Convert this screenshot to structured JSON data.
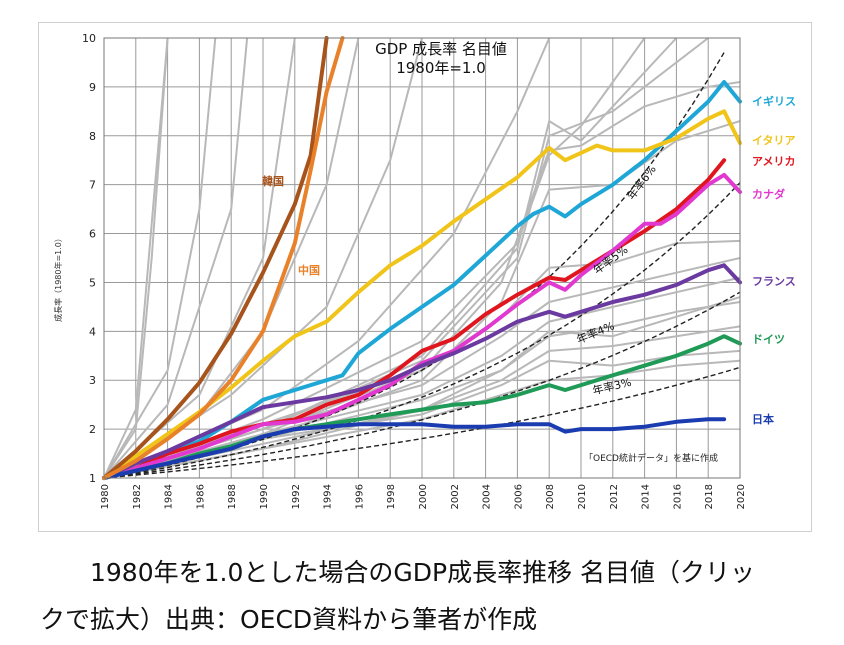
{
  "chart_data": {
    "type": "line",
    "title": "GDP 成長率 名目値",
    "subtitle": "1980年=1.0",
    "ylabel": "成長率（1980年=1.0）",
    "xlabel": "",
    "xlim": [
      1980,
      2020
    ],
    "ylim": [
      1,
      10
    ],
    "x_ticks": [
      "1980",
      "1982",
      "1984",
      "1986",
      "1988",
      "1990",
      "1992",
      "1994",
      "1996",
      "1998",
      "2000",
      "2002",
      "2004",
      "2006",
      "2008",
      "2010",
      "2012",
      "2014",
      "2016",
      "2018",
      "2020"
    ],
    "y_ticks": [
      "1",
      "2",
      "3",
      "4",
      "5",
      "6",
      "7",
      "8",
      "9",
      "10"
    ],
    "grid": true,
    "annotation": "「OECD統計データ」を基に作成",
    "series": [
      {
        "name": "イギリス",
        "color": "#1ea7d6",
        "x": [
          1980,
          1982,
          1984,
          1986,
          1988,
          1990,
          1992,
          1994,
          1995,
          1996,
          1998,
          2000,
          2002,
          2004,
          2006,
          2007,
          2008,
          2009,
          2010,
          2012,
          2014,
          2016,
          2018,
          2019,
          2020
        ],
        "y": [
          1,
          1.3,
          1.5,
          1.75,
          2.15,
          2.6,
          2.8,
          3.0,
          3.1,
          3.55,
          4.05,
          4.5,
          4.95,
          5.55,
          6.15,
          6.4,
          6.55,
          6.35,
          6.6,
          7.0,
          7.5,
          8.1,
          8.7,
          9.1,
          8.7
        ]
      },
      {
        "name": "イタリア",
        "color": "#f0c419",
        "x": [
          1980,
          1982,
          1984,
          1986,
          1988,
          1990,
          1992,
          1994,
          1996,
          1998,
          2000,
          2002,
          2004,
          2006,
          2008,
          2009,
          2010,
          2011,
          2012,
          2014,
          2016,
          2018,
          2019,
          2020
        ],
        "y": [
          1,
          1.45,
          1.9,
          2.35,
          2.85,
          3.4,
          3.9,
          4.2,
          4.8,
          5.35,
          5.75,
          6.25,
          6.7,
          7.15,
          7.75,
          7.5,
          7.65,
          7.8,
          7.7,
          7.7,
          7.95,
          8.35,
          8.5,
          7.85
        ]
      },
      {
        "name": "アメリカ",
        "color": "#e0161e",
        "x": [
          1980,
          1982,
          1984,
          1986,
          1988,
          1990,
          1992,
          1994,
          1996,
          1998,
          2000,
          2002,
          2004,
          2006,
          2008,
          2009,
          2010,
          2012,
          2014,
          2016,
          2018,
          2019
        ],
        "y": [
          1,
          1.2,
          1.5,
          1.7,
          1.95,
          2.1,
          2.2,
          2.5,
          2.7,
          3.1,
          3.6,
          3.85,
          4.35,
          4.75,
          5.1,
          5.05,
          5.25,
          5.65,
          6.05,
          6.5,
          7.1,
          7.5
        ]
      },
      {
        "name": "カナダ",
        "color": "#e138d0",
        "x": [
          1980,
          1982,
          1984,
          1986,
          1988,
          1990,
          1992,
          1994,
          1996,
          1998,
          2000,
          2002,
          2004,
          2006,
          2008,
          2009,
          2010,
          2012,
          2014,
          2015,
          2016,
          2018,
          2019,
          2020
        ],
        "y": [
          1,
          1.2,
          1.4,
          1.6,
          1.85,
          2.1,
          2.15,
          2.3,
          2.6,
          2.9,
          3.35,
          3.6,
          4.05,
          4.55,
          5.0,
          4.85,
          5.15,
          5.65,
          6.2,
          6.2,
          6.4,
          7.0,
          7.2,
          6.85
        ]
      },
      {
        "name": "フランス",
        "color": "#6b3aa0",
        "x": [
          1980,
          1982,
          1984,
          1986,
          1988,
          1990,
          1992,
          1994,
          1996,
          1998,
          2000,
          2002,
          2004,
          2006,
          2008,
          2009,
          2010,
          2012,
          2014,
          2016,
          2018,
          2019,
          2020
        ],
        "y": [
          1,
          1.3,
          1.55,
          1.85,
          2.15,
          2.45,
          2.55,
          2.65,
          2.8,
          3.0,
          3.3,
          3.55,
          3.85,
          4.2,
          4.4,
          4.3,
          4.4,
          4.6,
          4.75,
          4.95,
          5.25,
          5.35,
          5.0
        ]
      },
      {
        "name": "ドイツ",
        "color": "#1f9a57",
        "x": [
          1980,
          1982,
          1984,
          1986,
          1988,
          1990,
          1992,
          1994,
          1996,
          1998,
          2000,
          2002,
          2004,
          2006,
          2008,
          2009,
          2010,
          2012,
          2014,
          2016,
          2018,
          2019,
          2020
        ],
        "y": [
          1,
          1.15,
          1.3,
          1.5,
          1.65,
          1.85,
          2.0,
          2.1,
          2.2,
          2.3,
          2.4,
          2.5,
          2.55,
          2.7,
          2.9,
          2.8,
          2.9,
          3.1,
          3.3,
          3.5,
          3.75,
          3.9,
          3.75
        ]
      },
      {
        "name": "日本",
        "color": "#1a3cb0",
        "x": [
          1980,
          1982,
          1984,
          1986,
          1988,
          1990,
          1992,
          1994,
          1996,
          1998,
          2000,
          2002,
          2004,
          2006,
          2008,
          2009,
          2010,
          2012,
          2014,
          2016,
          2018,
          2019
        ],
        "y": [
          1,
          1.15,
          1.3,
          1.45,
          1.6,
          1.85,
          2.0,
          2.05,
          2.1,
          2.1,
          2.1,
          2.05,
          2.05,
          2.1,
          2.1,
          1.95,
          2.0,
          2.0,
          2.05,
          2.15,
          2.2,
          2.2
        ]
      },
      {
        "name": "韓国",
        "color": "#a6531c",
        "x": [
          1980,
          1982,
          1984,
          1986,
          1988,
          1990,
          1992,
          1993,
          1994
        ],
        "y": [
          1,
          1.55,
          2.2,
          2.95,
          3.95,
          5.2,
          6.6,
          7.6,
          10
        ]
      },
      {
        "name": "中国",
        "color": "#e8812a",
        "x": [
          1980,
          1982,
          1984,
          1986,
          1988,
          1990,
          1992,
          1993,
          1994,
          1995
        ],
        "y": [
          1,
          1.35,
          1.8,
          2.3,
          3.0,
          4.0,
          5.8,
          7.3,
          8.9,
          10
        ]
      }
    ],
    "reference_lines": [
      {
        "name": "年率6%",
        "rate": 0.06
      },
      {
        "name": "年率5%",
        "rate": 0.05
      },
      {
        "name": "年率4%",
        "rate": 0.04
      },
      {
        "name": "年率3%",
        "rate": 0.03
      }
    ],
    "other_series": [
      {
        "x": [
          1980,
          1982,
          1984
        ],
        "y": [
          1,
          2.4,
          10
        ]
      },
      {
        "x": [
          1980,
          1982,
          1983,
          1984
        ],
        "y": [
          1,
          2.0,
          5.5,
          10
        ]
      },
      {
        "x": [
          1980,
          1984,
          1986,
          1987
        ],
        "y": [
          1,
          3.2,
          6.5,
          10
        ]
      },
      {
        "x": [
          1980,
          1984,
          1988,
          1989
        ],
        "y": [
          1,
          2.5,
          6.5,
          10
        ]
      },
      {
        "x": [
          1980,
          1986,
          1990,
          1992
        ],
        "y": [
          1,
          2.7,
          5.5,
          10
        ]
      },
      {
        "x": [
          1980,
          1986,
          1990,
          1994,
          1996
        ],
        "y": [
          1,
          2.3,
          4.0,
          7.0,
          10
        ]
      },
      {
        "x": [
          1980,
          1988,
          1994,
          1998,
          2000
        ],
        "y": [
          1,
          2.7,
          4.5,
          7.5,
          10
        ]
      },
      {
        "x": [
          1980,
          1990,
          1996,
          2002,
          2006,
          2008
        ],
        "y": [
          1,
          2.4,
          3.8,
          6.0,
          8.5,
          10
        ]
      },
      {
        "x": [
          1980,
          1990,
          2000,
          2006,
          2008,
          2010,
          2014
        ],
        "y": [
          1,
          2.2,
          3.8,
          5.8,
          7.6,
          8.2,
          10
        ]
      },
      {
        "x": [
          1980,
          1990,
          2000,
          2006,
          2008,
          2010,
          2016
        ],
        "y": [
          1,
          2.0,
          3.5,
          5.7,
          8.3,
          7.9,
          10
        ]
      },
      {
        "x": [
          1980,
          1990,
          2000,
          2006,
          2008,
          2012,
          2018
        ],
        "y": [
          1,
          2.0,
          3.4,
          5.5,
          8.0,
          8.5,
          10
        ]
      },
      {
        "x": [
          1980,
          1990,
          2000,
          2005,
          2008,
          2010,
          2014,
          2018,
          2020
        ],
        "y": [
          1,
          1.9,
          3.2,
          5.0,
          7.7,
          7.8,
          8.6,
          9.0,
          9.1
        ]
      },
      {
        "x": [
          1980,
          1990,
          2000,
          2005,
          2008,
          2012,
          2016,
          2020
        ],
        "y": [
          1,
          1.8,
          3.0,
          4.6,
          6.9,
          7.0,
          7.9,
          8.3
        ]
      },
      {
        "x": [
          1980,
          1990,
          2000,
          2005,
          2008,
          2012,
          2016,
          2020
        ],
        "y": [
          1,
          2.1,
          3.2,
          4.3,
          5.3,
          5.4,
          5.8,
          5.85
        ]
      },
      {
        "x": [
          1980,
          1990,
          2000,
          2005,
          2008,
          2012,
          2016,
          2020
        ],
        "y": [
          1,
          2.0,
          2.9,
          3.9,
          4.6,
          4.9,
          5.2,
          5.5
        ]
      },
      {
        "x": [
          1980,
          1990,
          2000,
          2005,
          2008,
          2012,
          2016,
          2020
        ],
        "y": [
          1,
          1.9,
          2.7,
          3.5,
          4.2,
          4.5,
          4.8,
          5.1
        ]
      },
      {
        "x": [
          1980,
          1990,
          2000,
          2005,
          2008,
          2012,
          2016,
          2020
        ],
        "y": [
          1,
          1.8,
          2.6,
          3.2,
          3.9,
          4.1,
          4.4,
          4.6
        ]
      },
      {
        "x": [
          1980,
          1990,
          2000,
          2005,
          2008,
          2012,
          2016,
          2020
        ],
        "y": [
          1,
          1.7,
          2.4,
          3.0,
          3.6,
          3.7,
          3.9,
          4.1
        ]
      },
      {
        "x": [
          1980,
          1990,
          2000,
          2005,
          2008,
          2012,
          2016,
          2020
        ],
        "y": [
          1,
          1.8,
          2.3,
          2.9,
          3.4,
          3.3,
          3.5,
          3.6
        ]
      },
      {
        "x": [
          1980,
          1990,
          2000,
          2005,
          2008,
          2012,
          2016,
          2020
        ],
        "y": [
          1,
          1.6,
          2.2,
          2.7,
          3.0,
          3.1,
          3.3,
          3.4
        ]
      },
      {
        "x": [
          1980,
          1990,
          2000,
          2005,
          2008,
          2012,
          2016,
          2020
        ],
        "y": [
          1,
          1.6,
          2.4,
          3.2,
          4.0,
          3.9,
          4.3,
          4.7
        ]
      }
    ]
  },
  "caption": {
    "line1": "1980年を1.0とした場合のGDP成長率推移 名目値（クリッ",
    "line2": "クで拡大）出典：OECD資料から筆者が作成"
  },
  "colors": {
    "grid": "#9a9a9a",
    "other_series": "#b8b8b8",
    "reference": "#222222"
  }
}
